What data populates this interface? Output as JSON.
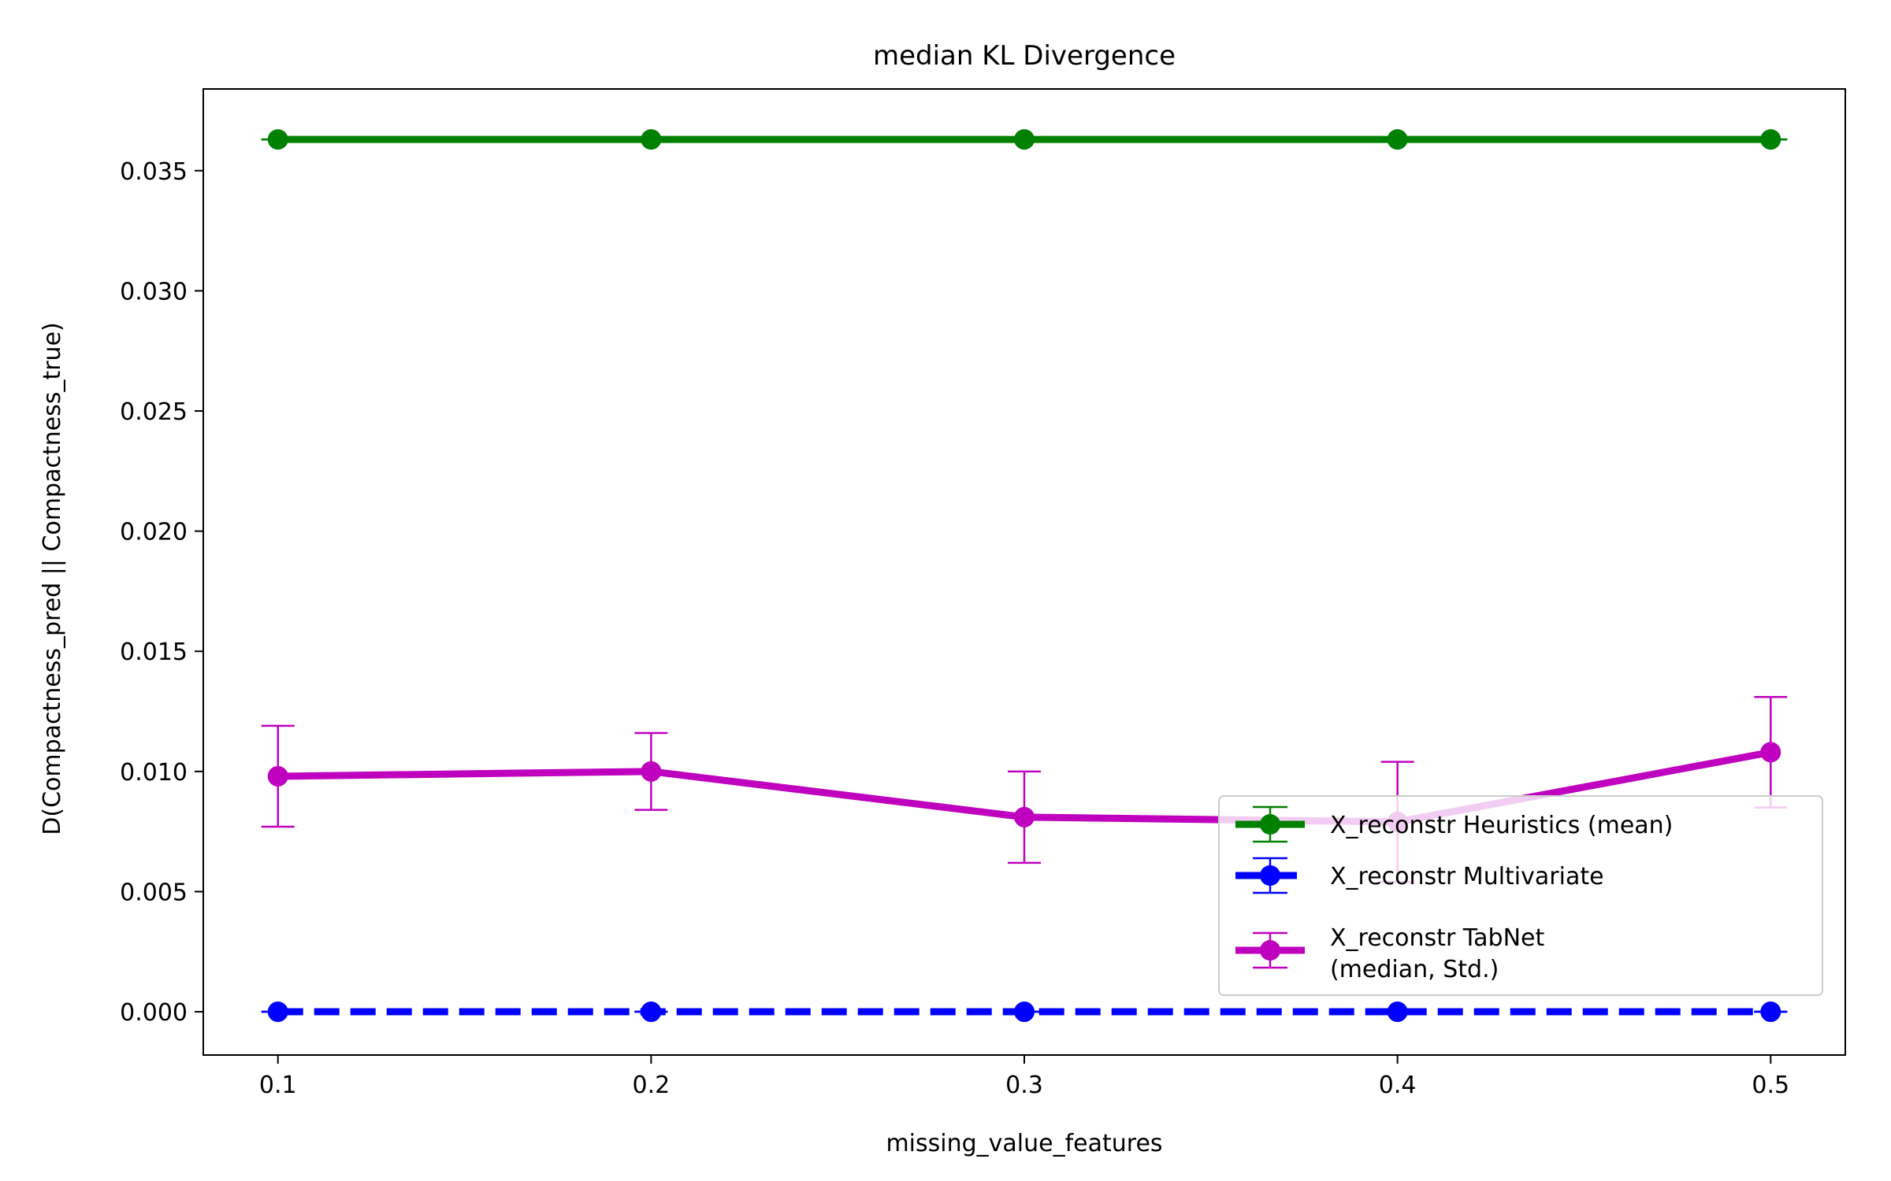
{
  "chart_data": {
    "type": "line",
    "title": "median KL Divergence",
    "xlabel": "missing_value_features",
    "ylabel": "D(Compactness_pred || Compactness_true)",
    "x": [
      0.1,
      0.2,
      0.3,
      0.4,
      0.5
    ],
    "xticks": [
      "0.1",
      "0.2",
      "0.3",
      "0.4",
      "0.5"
    ],
    "yticks": [
      "0.000",
      "0.005",
      "0.010",
      "0.015",
      "0.020",
      "0.025",
      "0.030",
      "0.035"
    ],
    "xlim": [
      0.08,
      0.52
    ],
    "ylim": [
      -0.0018,
      0.0384
    ],
    "grid": false,
    "legend_position": "lower-right",
    "series": [
      {
        "name": "X_reconstr Heuristics (mean)",
        "name_lines": [
          "X_reconstr Heuristics (mean)"
        ],
        "color": "#008000",
        "dashed": false,
        "values": [
          0.0363,
          0.0363,
          0.0363,
          0.0363,
          0.0363
        ],
        "err": [
          0.0,
          0.0,
          0.0,
          0.0,
          0.0
        ]
      },
      {
        "name": "X_reconstr Multivariate",
        "name_lines": [
          "X_reconstr Multivariate"
        ],
        "color": "#0000ff",
        "dashed": true,
        "values": [
          0.0,
          0.0,
          0.0,
          0.0,
          0.0
        ],
        "err": [
          0.0,
          0.0,
          0.0,
          0.0,
          0.0
        ]
      },
      {
        "name": "X_reconstr TabNet (median, Std.)",
        "name_lines": [
          "X_reconstr TabNet",
          "(median, Std.)"
        ],
        "color": "#bf00bf",
        "dashed": false,
        "values": [
          0.0098,
          0.01,
          0.0081,
          0.0079,
          0.0108
        ],
        "err": [
          0.0021,
          0.0016,
          0.0019,
          0.0025,
          0.0023
        ]
      }
    ]
  }
}
